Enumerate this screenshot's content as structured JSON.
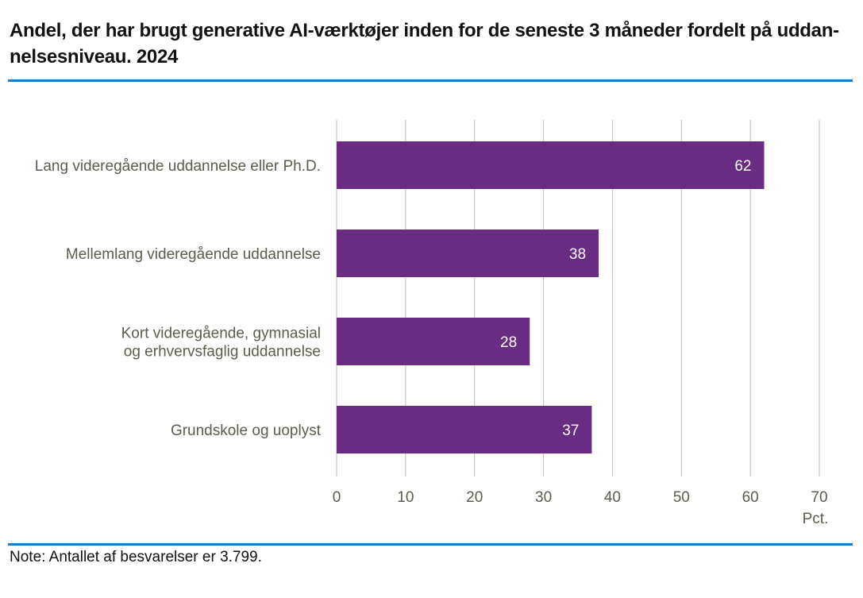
{
  "title": "Andel, der har brugt generative AI-værktøjer inden for de seneste 3 måneder fordelt på uddan-nelsesniveau. 2024",
  "title_line1": "Andel, der har brugt generative AI-værktøjer inden for de seneste 3 måneder fordelt på uddan-",
  "title_line2": "nelsesniveau. 2024",
  "note": "Note: Antallet af besvarelser er 3.799.",
  "colors": {
    "bar": "#6a2c82",
    "grid": "#bdbdb0",
    "rule": "#1f7ac1"
  },
  "chart_data": {
    "type": "bar",
    "orientation": "horizontal",
    "categories": [
      [
        "Lang videregående uddannelse eller Ph.D."
      ],
      [
        "Mellemlang videregående uddannelse"
      ],
      [
        "Kort videregående, gymnasial",
        "og erhvervsfaglig uddannelse"
      ],
      [
        "Grundskole og uoplyst"
      ]
    ],
    "values": [
      62,
      38,
      28,
      37
    ],
    "xticks": [
      0,
      10,
      20,
      30,
      40,
      50,
      60,
      70
    ],
    "xlim": [
      0,
      70
    ],
    "unit_label": "Pct.",
    "grid": true,
    "data_labels": true
  }
}
